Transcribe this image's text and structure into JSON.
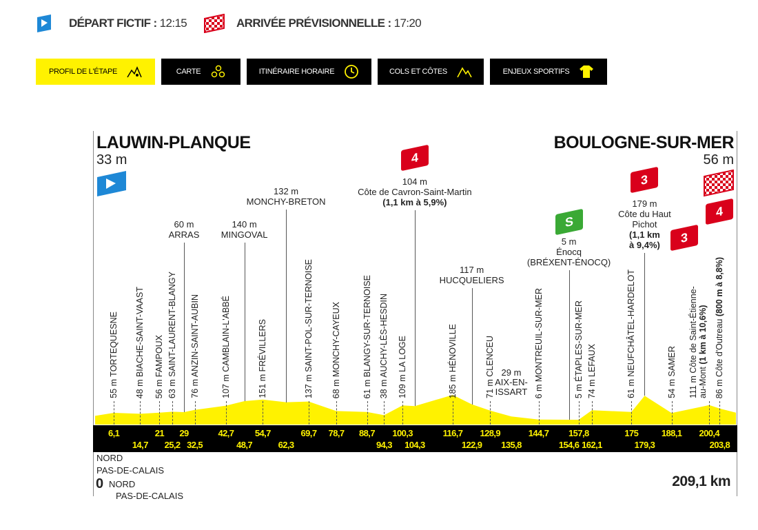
{
  "header": {
    "depart": {
      "label": "DÉPART FICTIF :",
      "time": "12:15",
      "icon": "start-flag-icon"
    },
    "arrivee": {
      "label": "ARRIVÉE PRÉVISIONNELLE :",
      "time": "17:20",
      "icon": "finish-flag-icon"
    }
  },
  "tabs": [
    {
      "label": "PROFIL DE L'ÉTAPE",
      "icon": "profile-icon",
      "active": true
    },
    {
      "label": "CARTE",
      "icon": "map-icon"
    },
    {
      "label": "ITINÉRAIRE HORAIRE",
      "icon": "clock-icon"
    },
    {
      "label": "COLS ET CÔTES",
      "icon": "mountain-icon"
    },
    {
      "label": "ENJEUX SPORTIFS",
      "icon": "jersey-icon"
    }
  ],
  "colors": {
    "yellow": "#fff200",
    "black": "#000000",
    "climb_red": "#d9001b",
    "sprint_green": "#3aa935",
    "start_blue": "#1e88d6"
  },
  "profile": {
    "start": {
      "name": "LAUWIN-PLANQUE",
      "alt": "33 m",
      "elev": 33
    },
    "finish": {
      "name": "BOULOGNE-SUR-MER",
      "alt": "56 m",
      "elev": 56
    },
    "start_km": "0",
    "total_km": "209,1 km",
    "total_km_value": 209.1,
    "regions_top": [
      "NORD",
      "PAS-DE-CALAIS"
    ],
    "regions_bottom": [
      "NORD",
      "PAS-DE-CALAIS"
    ],
    "vertical_points": [
      {
        "km": 6.1,
        "elev": 55,
        "text": "55 m TORTEQUESNE"
      },
      {
        "km": 14.7,
        "elev": 48,
        "text": "48 m BIACHE-SAINT-VAAST"
      },
      {
        "km": 21,
        "elev": 56,
        "text": "56 m FAMPOUX"
      },
      {
        "km": 25.2,
        "elev": 63,
        "text": "63 m SAINT-LAURENT-BLANGY"
      },
      {
        "km": 32.5,
        "elev": 76,
        "text": "76 m ANZIN-SAINT-AUBIN"
      },
      {
        "km": 42.7,
        "elev": 107,
        "text": "107 m CAMBLAIN-L'ABBÉ"
      },
      {
        "km": 54.7,
        "elev": 151,
        "text": "151 m FRÉVILLERS"
      },
      {
        "km": 69.7,
        "elev": 137,
        "text": "137 m SAINT-POL-SUR-TERNOISE"
      },
      {
        "km": 78.7,
        "elev": 68,
        "text": "68 m MONCHY-CAYEUX"
      },
      {
        "km": 88.7,
        "elev": 61,
        "text": "61 m BLANGY-SUR-TERNOISE"
      },
      {
        "km": 94.3,
        "elev": 38,
        "text": "38 m AUCHY-LÈS-HESDIN"
      },
      {
        "km": 100.3,
        "elev": 109,
        "text": "109 m LA LOGE"
      },
      {
        "km": 116.7,
        "elev": 185,
        "text": "185 m HÉNOVILLE"
      },
      {
        "km": 128.9,
        "elev": 71,
        "text": "71 m CLENCEU"
      },
      {
        "km": 144.7,
        "elev": 6,
        "text": "6 m MONTREUIL-SUR-MER"
      },
      {
        "km": 157.8,
        "elev": 5,
        "text": "5 m ÉTAPLES-SUR-MER"
      },
      {
        "km": 162.1,
        "elev": 74,
        "text": "74 m LEFAUX"
      },
      {
        "km": 175,
        "elev": 61,
        "text": "61 m NEUFCHÂTEL-HARDELOT"
      },
      {
        "km": 188.1,
        "elev": 54,
        "text": "54 m SAMER"
      },
      {
        "km": 200.4,
        "elev": 111,
        "text": "111 m Côte de Saint-Étienne-au-Mont",
        "bold": "(1 km à 10,6%)",
        "category": "3"
      },
      {
        "km": 203.8,
        "elev": 86,
        "text": "86 m Côte d'Outreau",
        "bold": "(800 m à 8,8%)",
        "category": "4"
      }
    ],
    "top_points": [
      {
        "km": 29,
        "elev": 60,
        "alt": "60 m",
        "name": "ARRAS"
      },
      {
        "km": 48.7,
        "elev": 140,
        "alt": "140 m",
        "name": "MINGOVAL"
      },
      {
        "km": 62.3,
        "elev": 132,
        "alt": "132 m",
        "name": "MONCHY-BRETON"
      },
      {
        "km": 104.3,
        "elev": 104,
        "alt": "104 m",
        "name": "Côte de Cavron-Saint-Martin",
        "bold": "(1,1 km à 5,9%)",
        "category": "4"
      },
      {
        "km": 122.9,
        "elev": 117,
        "alt": "117 m",
        "name": "HUCQUELIERS"
      },
      {
        "km": 135.8,
        "elev": 29,
        "alt": "29 m",
        "name": "AIX-EN-ISSART",
        "low": true
      },
      {
        "km": 154.6,
        "elev": 5,
        "alt": "5 m",
        "name": "Énocq",
        "name2": "(BRÉXENT-ÉNOCQ)",
        "sprint": "S"
      },
      {
        "km": 179.3,
        "elev": 179,
        "alt": "179 m",
        "name": "Côte du Haut",
        "name2": "Pichot",
        "bold": "(1,1 km",
        "bold2": "à 9,4%)",
        "category": "3"
      }
    ],
    "km_marks_top": [
      "6,1",
      "21",
      "29",
      "42,7",
      "54,7",
      "69,7",
      "78,7",
      "88,7",
      "100,3",
      "116,7",
      "128,9",
      "144,7",
      "157,8",
      "175",
      "188,1",
      "200,4"
    ],
    "km_marks_top_values": [
      6.1,
      21,
      29,
      42.7,
      54.7,
      69.7,
      78.7,
      88.7,
      100.3,
      116.7,
      128.9,
      144.7,
      157.8,
      175,
      188.1,
      200.4
    ],
    "km_marks_bottom": [
      "14,7",
      "25,2",
      "32,5",
      "48,7",
      "62,3",
      "94,3",
      "104,3",
      "122,9",
      "135,8",
      "154,6",
      "162,1",
      "179,3",
      "203,8"
    ],
    "km_marks_bottom_values": [
      14.7,
      25.2,
      32.5,
      48.7,
      62.3,
      94.3,
      104.3,
      122.9,
      135.8,
      154.6,
      162.1,
      179.3,
      203.8
    ]
  }
}
